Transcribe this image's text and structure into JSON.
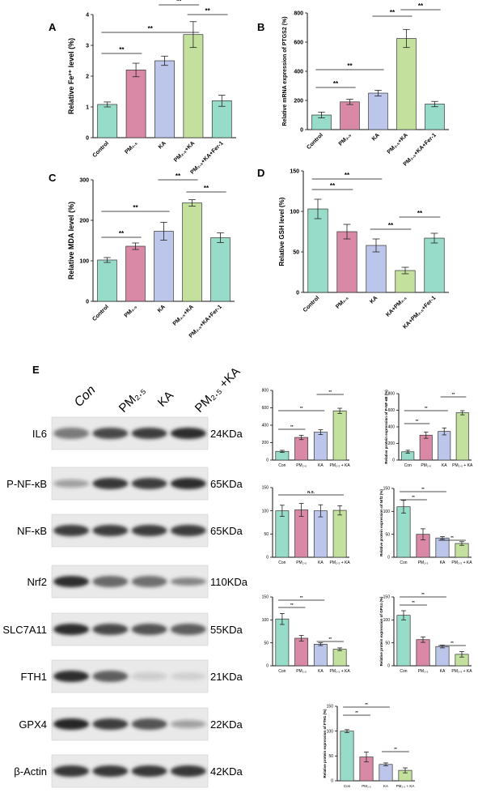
{
  "panels": {
    "A": {
      "letter": "A",
      "ylabel": "Relative Fe²⁺ level (%)",
      "ylim": [
        0,
        4
      ],
      "yticks": [
        "0",
        "1",
        "2",
        "3",
        "4"
      ],
      "sig": [
        "**",
        "**",
        "**",
        "**"
      ]
    },
    "B": {
      "letter": "B",
      "ylabel": "Relative mRNA expression of PTGS2 (%)",
      "ylim": [
        0,
        800
      ],
      "yticks": [
        "0",
        "200",
        "400",
        "600",
        "800"
      ],
      "sig": [
        "**",
        "**",
        "**",
        "**"
      ]
    },
    "C": {
      "letter": "C",
      "ylabel": "Relative MDA level (%)",
      "ylim": [
        0,
        300
      ],
      "yticks": [
        "0",
        "100",
        "200",
        "300"
      ],
      "sig": [
        "**",
        "**",
        "**",
        "**"
      ]
    },
    "D": {
      "letter": "D",
      "ylabel": "Relative GSH level (%)",
      "ylim": [
        0,
        150
      ],
      "yticks": [
        "0",
        "50",
        "100",
        "150"
      ],
      "sig": [
        "**",
        "**",
        "**",
        "**"
      ]
    },
    "E": {
      "letter": "E"
    }
  },
  "blot": {
    "lane_labels": [
      "Con",
      "PM₂.₅",
      "KA",
      "PM₂.₅ +KA"
    ],
    "rows": [
      {
        "protein": "IL6",
        "kda": "24KDa"
      },
      {
        "protein": "P-NF-κB",
        "kda": "65KDa"
      },
      {
        "protein": "NF-κB",
        "kda": "65KDa"
      },
      {
        "protein": "Nrf2",
        "kda": "110KDa"
      },
      {
        "protein": "SLC7A11",
        "kda": "55KDa"
      },
      {
        "protein": "FTH1",
        "kda": "21KDa"
      },
      {
        "protein": "GPX4",
        "kda": "22KDa"
      },
      {
        "protein": "β-Actin",
        "kda": "42KDa"
      }
    ]
  },
  "colors": {
    "teal": "#96dcc8",
    "pink": "#d989a6",
    "lavender": "#bcc5ea",
    "green": "#c3e09d"
  },
  "chart_data": [
    {
      "id": "A",
      "type": "bar",
      "categories": [
        "Control",
        "PM2.5",
        "KA",
        "PM2.5+KA",
        "PM2.5+KA+Fer-1"
      ],
      "values": [
        1.08,
        2.2,
        2.5,
        3.35,
        1.2
      ],
      "errors": [
        0.08,
        0.22,
        0.15,
        0.42,
        0.18
      ],
      "ylabel": "Relative Fe²⁺ level (%)",
      "ylim": [
        0,
        4
      ]
    },
    {
      "id": "B",
      "type": "bar",
      "categories": [
        "Control",
        "PM2.5",
        "KA",
        "PM2.5+KA",
        "PM2.5+KA+Fer-1"
      ],
      "values": [
        100,
        190,
        250,
        625,
        175
      ],
      "errors": [
        20,
        18,
        20,
        62,
        18
      ],
      "ylabel": "Relative mRNA expression of PTGS2 (%)",
      "ylim": [
        0,
        800
      ]
    },
    {
      "id": "C",
      "type": "bar",
      "categories": [
        "Control",
        "PM2.5",
        "KA",
        "PM2.5+KA",
        "PM2.5+KA+Fer-1"
      ],
      "values": [
        102,
        136,
        173,
        243,
        157
      ],
      "errors": [
        6,
        8,
        22,
        8,
        12
      ],
      "ylabel": "Relative MDA level (%)",
      "ylim": [
        0,
        300
      ]
    },
    {
      "id": "D",
      "type": "bar",
      "categories": [
        "Control",
        "PM2.5",
        "KA",
        "KA+PM2.5",
        "KA+PM2.5+Fer-1"
      ],
      "values": [
        103,
        75,
        58,
        27,
        67
      ],
      "errors": [
        12,
        9,
        8,
        4,
        6
      ],
      "ylabel": "Relative GSH level (%)",
      "ylim": [
        0,
        150
      ]
    },
    {
      "id": "E1",
      "type": "bar",
      "categories": [
        "Con",
        "PM2.5",
        "KA",
        "PM2.5 + KA"
      ],
      "values": [
        100,
        260,
        320,
        565
      ],
      "errors": [
        12,
        25,
        28,
        30
      ],
      "ylim": [
        0,
        800
      ]
    },
    {
      "id": "E2",
      "type": "bar",
      "categories": [
        "Con",
        "PM2.5",
        "KA",
        "PM2.5 + KA"
      ],
      "values": [
        100,
        300,
        345,
        570
      ],
      "errors": [
        18,
        38,
        42,
        25
      ],
      "ylabel": "Relative protein expression of P-NF-κB (%)",
      "ylim": [
        0,
        800
      ]
    },
    {
      "id": "E3",
      "type": "bar",
      "categories": [
        "Con",
        "PM2.5",
        "KA",
        "PM2.5 + KA"
      ],
      "values": [
        100,
        102,
        100,
        101
      ],
      "errors": [
        12,
        14,
        13,
        10
      ],
      "ylim": [
        0,
        150
      ],
      "annotation": "N.S."
    },
    {
      "id": "E4",
      "type": "bar",
      "categories": [
        "Con",
        "PM2.5",
        "KA",
        "PM2.5 + KA"
      ],
      "values": [
        110,
        50,
        42,
        30
      ],
      "errors": [
        14,
        12,
        3,
        4
      ],
      "ylabel": "Relative protein expression of Nrf2 (%)",
      "ylim": [
        0,
        150
      ]
    },
    {
      "id": "E5",
      "type": "bar",
      "categories": [
        "Con",
        "PM2.5",
        "KA",
        "PM2.5 + KA"
      ],
      "values": [
        102,
        60,
        47,
        36
      ],
      "errors": [
        12,
        6,
        3,
        3
      ],
      "ylim": [
        0,
        150
      ]
    },
    {
      "id": "E6",
      "type": "bar",
      "categories": [
        "Con",
        "PM2.5",
        "KA",
        "PM2.5 + KA"
      ],
      "values": [
        110,
        57,
        42,
        25
      ],
      "errors": [
        10,
        6,
        3,
        6
      ],
      "ylabel": "Relative protein expression of GPX4 (%)",
      "ylim": [
        0,
        150
      ]
    },
    {
      "id": "E7",
      "type": "bar",
      "categories": [
        "Con",
        "PM2.5",
        "KA",
        "PM2.5 + KA"
      ],
      "values": [
        100,
        48,
        33,
        21
      ],
      "errors": [
        3,
        10,
        3,
        5
      ],
      "ylabel": "Relative protein expression of FTH1 (%)",
      "ylim": [
        0,
        150
      ]
    }
  ]
}
